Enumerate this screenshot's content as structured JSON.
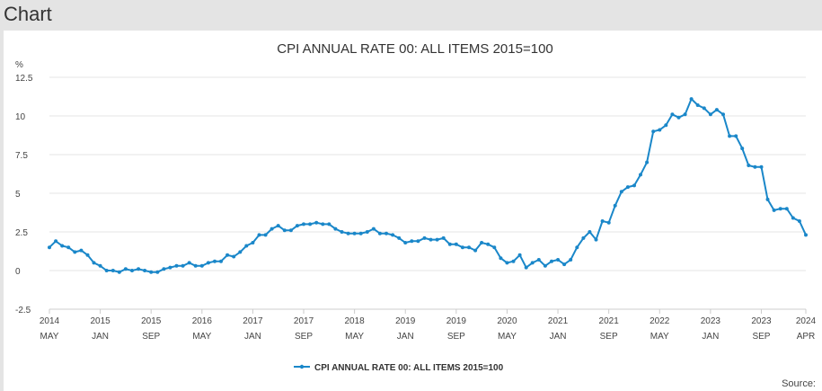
{
  "header": {
    "title": "Chart"
  },
  "source_label": "Source:",
  "chart_data": {
    "type": "line",
    "title": "CPI ANNUAL RATE 00: ALL ITEMS 2015=100",
    "ylabel": "%",
    "xlabel": "",
    "ylim": [
      -2.5,
      12.5
    ],
    "yticks": [
      -2.5,
      0,
      2.5,
      5,
      7.5,
      10,
      12.5
    ],
    "ytick_labels": [
      "-2.5",
      "0",
      "2.5",
      "5",
      "7.5",
      "10",
      "12.5"
    ],
    "grid": "horizontal",
    "legend": "bottom-center",
    "series_color": "#1a87c9",
    "xticks": [
      {
        "date": "2014-05",
        "year": "2014",
        "month": "MAY"
      },
      {
        "date": "2015-01",
        "year": "2015",
        "month": "JAN"
      },
      {
        "date": "2015-09",
        "year": "2015",
        "month": "SEP"
      },
      {
        "date": "2016-05",
        "year": "2016",
        "month": "MAY"
      },
      {
        "date": "2017-01",
        "year": "2017",
        "month": "JAN"
      },
      {
        "date": "2017-09",
        "year": "2017",
        "month": "SEP"
      },
      {
        "date": "2018-05",
        "year": "2018",
        "month": "MAY"
      },
      {
        "date": "2019-01",
        "year": "2019",
        "month": "JAN"
      },
      {
        "date": "2019-09",
        "year": "2019",
        "month": "SEP"
      },
      {
        "date": "2020-05",
        "year": "2020",
        "month": "MAY"
      },
      {
        "date": "2021-01",
        "year": "2021",
        "month": "JAN"
      },
      {
        "date": "2021-09",
        "year": "2021",
        "month": "SEP"
      },
      {
        "date": "2022-05",
        "year": "2022",
        "month": "MAY"
      },
      {
        "date": "2023-01",
        "year": "2023",
        "month": "JAN"
      },
      {
        "date": "2023-09",
        "year": "2023",
        "month": "SEP"
      },
      {
        "date": "2024-04",
        "year": "2024",
        "month": "APR"
      }
    ],
    "series": [
      {
        "name": "CPI ANNUAL RATE 00: ALL ITEMS 2015=100",
        "x": [
          "2014-05",
          "2014-06",
          "2014-07",
          "2014-08",
          "2014-09",
          "2014-10",
          "2014-11",
          "2014-12",
          "2015-01",
          "2015-02",
          "2015-03",
          "2015-04",
          "2015-05",
          "2015-06",
          "2015-07",
          "2015-08",
          "2015-09",
          "2015-10",
          "2015-11",
          "2015-12",
          "2016-01",
          "2016-02",
          "2016-03",
          "2016-04",
          "2016-05",
          "2016-06",
          "2016-07",
          "2016-08",
          "2016-09",
          "2016-10",
          "2016-11",
          "2016-12",
          "2017-01",
          "2017-02",
          "2017-03",
          "2017-04",
          "2017-05",
          "2017-06",
          "2017-07",
          "2017-08",
          "2017-09",
          "2017-10",
          "2017-11",
          "2017-12",
          "2018-01",
          "2018-02",
          "2018-03",
          "2018-04",
          "2018-05",
          "2018-06",
          "2018-07",
          "2018-08",
          "2018-09",
          "2018-10",
          "2018-11",
          "2018-12",
          "2019-01",
          "2019-02",
          "2019-03",
          "2019-04",
          "2019-05",
          "2019-06",
          "2019-07",
          "2019-08",
          "2019-09",
          "2019-10",
          "2019-11",
          "2019-12",
          "2020-01",
          "2020-02",
          "2020-03",
          "2020-04",
          "2020-05",
          "2020-06",
          "2020-07",
          "2020-08",
          "2020-09",
          "2020-10",
          "2020-11",
          "2020-12",
          "2021-01",
          "2021-02",
          "2021-03",
          "2021-04",
          "2021-05",
          "2021-06",
          "2021-07",
          "2021-08",
          "2021-09",
          "2021-10",
          "2021-11",
          "2021-12",
          "2022-01",
          "2022-02",
          "2022-03",
          "2022-04",
          "2022-05",
          "2022-06",
          "2022-07",
          "2022-08",
          "2022-09",
          "2022-10",
          "2022-11",
          "2022-12",
          "2023-01",
          "2023-02",
          "2023-03",
          "2023-04",
          "2023-05",
          "2023-06",
          "2023-07",
          "2023-08",
          "2023-09",
          "2023-10",
          "2023-11",
          "2023-12",
          "2024-01",
          "2024-02",
          "2024-03",
          "2024-04"
        ],
        "values": [
          1.5,
          1.9,
          1.6,
          1.5,
          1.2,
          1.3,
          1.0,
          0.5,
          0.3,
          0.0,
          0.0,
          -0.1,
          0.1,
          0.0,
          0.1,
          0.0,
          -0.1,
          -0.1,
          0.1,
          0.2,
          0.3,
          0.3,
          0.5,
          0.3,
          0.3,
          0.5,
          0.6,
          0.6,
          1.0,
          0.9,
          1.2,
          1.6,
          1.8,
          2.3,
          2.3,
          2.7,
          2.9,
          2.6,
          2.6,
          2.9,
          3.0,
          3.0,
          3.1,
          3.0,
          3.0,
          2.7,
          2.5,
          2.4,
          2.4,
          2.4,
          2.5,
          2.7,
          2.4,
          2.4,
          2.3,
          2.1,
          1.8,
          1.9,
          1.9,
          2.1,
          2.0,
          2.0,
          2.1,
          1.7,
          1.7,
          1.5,
          1.5,
          1.3,
          1.8,
          1.7,
          1.5,
          0.8,
          0.5,
          0.6,
          1.0,
          0.2,
          0.5,
          0.7,
          0.3,
          0.6,
          0.7,
          0.4,
          0.7,
          1.5,
          2.1,
          2.5,
          2.0,
          3.2,
          3.1,
          4.2,
          5.1,
          5.4,
          5.5,
          6.2,
          7.0,
          9.0,
          9.1,
          9.4,
          10.1,
          9.9,
          10.1,
          11.1,
          10.7,
          10.5,
          10.1,
          10.4,
          10.1,
          8.7,
          8.7,
          7.9,
          6.8,
          6.7,
          6.7,
          4.6,
          3.9,
          4.0,
          4.0,
          3.4,
          3.2,
          2.3
        ]
      }
    ]
  }
}
